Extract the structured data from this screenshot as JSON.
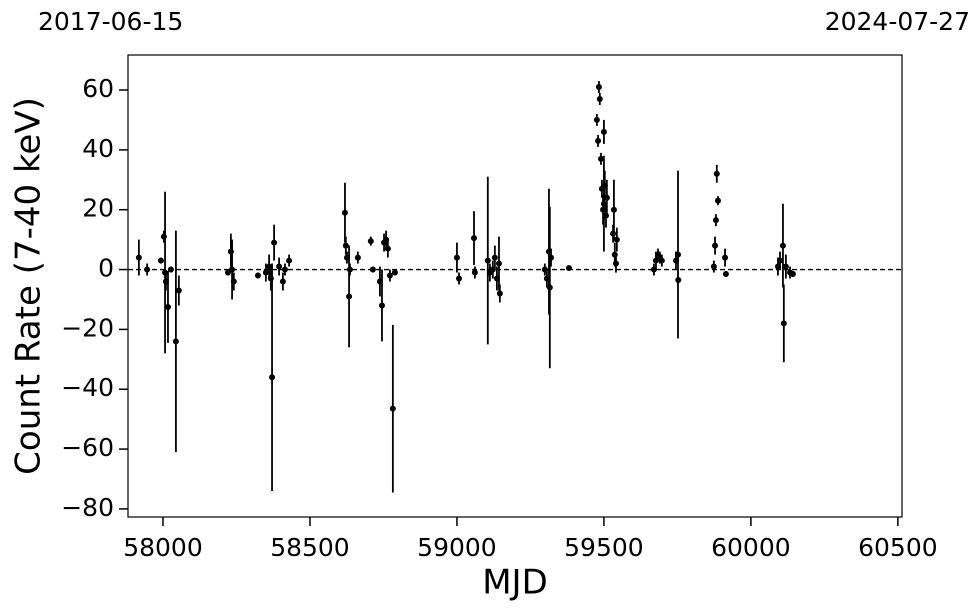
{
  "chart_data": {
    "type": "scatter",
    "top_left_label": "2017-06-15",
    "top_right_label": "2024-07-27",
    "x_label": "MJD",
    "y_label": "Count Rate (7-40 keV)",
    "xlim": [
      57881,
      60514
    ],
    "ylim": [
      -82.7,
      71.7
    ],
    "xticks": [
      58000,
      58500,
      59000,
      59500,
      60000,
      60500
    ],
    "yticks": [
      {
        "value": -80,
        "label": "−80"
      },
      {
        "value": -60,
        "label": "−60"
      },
      {
        "value": -40,
        "label": "−40"
      },
      {
        "value": -20,
        "label": "−20"
      },
      0,
      20,
      40,
      60
    ],
    "hline": 0,
    "color": "#000000",
    "x": [
      57918,
      57946,
      57993,
      58007,
      58003,
      58010,
      58017,
      58027,
      58044,
      58054,
      58221,
      58231,
      58235,
      58241,
      58323,
      58350,
      58361,
      58371,
      58378,
      58367,
      58395,
      58408,
      58415,
      58429,
      58619,
      58622,
      58626,
      58633,
      58636,
      58663,
      58707,
      58714,
      58738,
      58745,
      58752,
      58759,
      58765,
      58772,
      58782,
      58789,
      59000,
      59007,
      59058,
      59061,
      59105,
      59112,
      59122,
      59129,
      59136,
      59143,
      59146,
      59299,
      59306,
      59313,
      59316,
      59320,
      59381,
      59476,
      59480,
      59483,
      59486,
      59490,
      59493,
      59497,
      59500,
      59500,
      59503,
      59507,
      59510,
      59531,
      59534,
      59537,
      59541,
      59544,
      59670,
      59677,
      59684,
      59690,
      59697,
      59745,
      59752,
      59753,
      59874,
      59878,
      59881,
      59884,
      59888,
      59912,
      59915,
      60092,
      60099,
      60109,
      60112,
      60119,
      60133,
      60143
    ],
    "values": [
      4,
      0,
      3,
      -1,
      11,
      -4,
      -12.5,
      0,
      -24,
      -7,
      -1,
      6,
      0,
      -4,
      -2,
      -1,
      1,
      -36,
      9,
      -3,
      1,
      -4,
      0,
      3,
      19,
      8,
      4,
      -9,
      0,
      4,
      9.5,
      0,
      -4,
      -12,
      9,
      10,
      7,
      -2,
      -46.5,
      -1,
      4,
      -3,
      10.5,
      -1,
      3,
      -1,
      0,
      4,
      -3,
      2,
      -8,
      0,
      -3,
      6,
      -6,
      4,
      0.5,
      50,
      43,
      61,
      57,
      37,
      27,
      20,
      46,
      22,
      28,
      18,
      24,
      12,
      20,
      5,
      2,
      10,
      0,
      3,
      5,
      4,
      3,
      3,
      5,
      -3.5,
      1,
      8,
      16.5,
      32,
      23,
      4,
      -1.5,
      1,
      3,
      8,
      -18,
      1,
      -1,
      -1.5
    ],
    "errors": [
      6,
      2,
      1,
      27,
      2,
      3,
      12,
      1,
      37,
      5,
      1,
      6,
      10,
      3,
      1,
      3,
      4,
      38,
      6,
      4,
      3,
      3,
      2,
      2,
      10,
      3,
      2,
      17,
      2,
      2,
      1.5,
      1,
      5,
      12,
      3,
      3,
      3,
      2,
      28,
      1,
      5,
      2,
      9,
      2,
      28,
      3,
      3,
      4,
      4,
      9,
      3,
      2,
      3,
      21,
      27,
      3,
      0.5,
      2,
      2,
      2,
      2,
      2,
      3,
      5,
      4,
      16,
      5,
      4,
      6,
      3,
      10,
      4,
      3,
      4,
      2,
      3,
      2,
      2,
      2,
      3,
      28,
      1,
      2,
      3,
      2,
      3,
      1.5,
      3,
      1,
      3,
      3,
      14,
      13,
      4,
      2,
      1
    ]
  }
}
